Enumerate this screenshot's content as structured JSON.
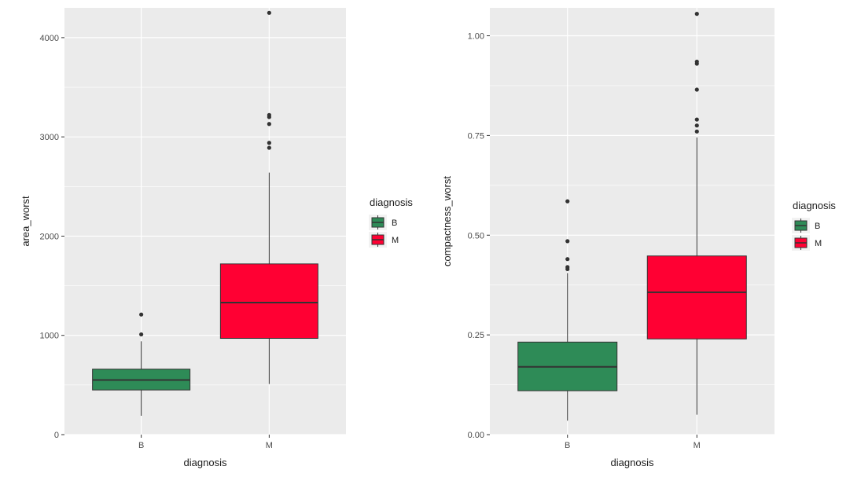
{
  "chart_data": [
    {
      "type": "boxplot",
      "xlabel": "diagnosis",
      "ylabel": "area_worst",
      "ylim": [
        0,
        4300
      ],
      "yticks": [
        0,
        1000,
        2000,
        3000,
        4000
      ],
      "ytick_labels": [
        "0",
        "1000",
        "2000",
        "3000",
        "4000"
      ],
      "categories": [
        "B",
        "M"
      ],
      "grid": true,
      "legend": {
        "title": "diagnosis",
        "position": "right",
        "entries": [
          "B",
          "M"
        ]
      },
      "boxes": [
        {
          "category": "B",
          "whisker_low": 190,
          "q1": 450,
          "median": 550,
          "q3": 660,
          "whisker_high": 940,
          "outliers": [
            1010,
            1210
          ],
          "color": "#2e8b57"
        },
        {
          "category": "M",
          "whisker_low": 510,
          "q1": 970,
          "median": 1330,
          "q3": 1720,
          "whisker_high": 2640,
          "outliers": [
            2890,
            2940,
            3130,
            3200,
            3220,
            4250
          ],
          "color": "#ff0033"
        }
      ]
    },
    {
      "type": "boxplot",
      "xlabel": "diagnosis",
      "ylabel": "compactness_worst",
      "ylim": [
        0,
        1.07
      ],
      "yticks": [
        0,
        0.25,
        0.5,
        0.75,
        1.0
      ],
      "ytick_labels": [
        "0.00",
        "0.25",
        "0.50",
        "0.75",
        "1.00"
      ],
      "categories": [
        "B",
        "M"
      ],
      "grid": true,
      "legend": {
        "title": "diagnosis",
        "position": "right",
        "entries": [
          "B",
          "M"
        ]
      },
      "boxes": [
        {
          "category": "B",
          "whisker_low": 0.035,
          "q1": 0.11,
          "median": 0.17,
          "q3": 0.232,
          "whisker_high": 0.405,
          "outliers": [
            0.415,
            0.42,
            0.44,
            0.485,
            0.585
          ],
          "color": "#2e8b57"
        },
        {
          "category": "M",
          "whisker_low": 0.05,
          "q1": 0.24,
          "median": 0.357,
          "q3": 0.448,
          "whisker_high": 0.745,
          "outliers": [
            0.76,
            0.775,
            0.79,
            0.865,
            0.93,
            0.935,
            1.055
          ],
          "color": "#ff0033"
        }
      ]
    }
  ]
}
